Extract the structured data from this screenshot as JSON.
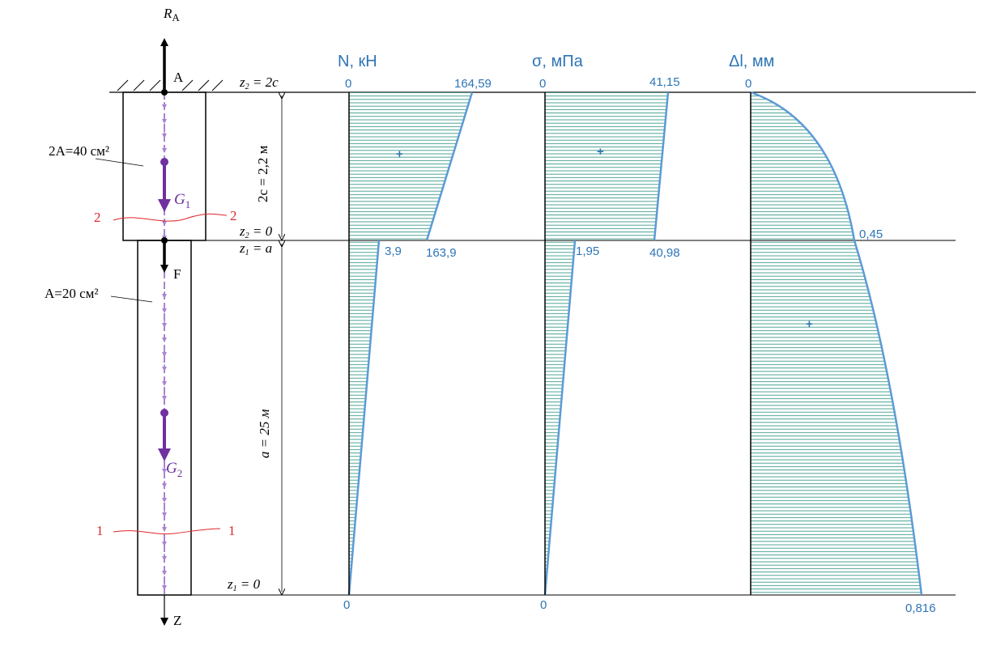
{
  "beam": {
    "reaction": {
      "symbol": "R",
      "index": "A"
    },
    "support_label": "A",
    "upper_area": "2A=40 см²",
    "lower_area": "A=20 см²",
    "weight_upper": {
      "symbol": "G",
      "index": "1"
    },
    "weight_lower": {
      "symbol": "G",
      "index": "2"
    },
    "force": "F",
    "axis": "Z",
    "section_2": [
      "2",
      "2"
    ],
    "section_1": [
      "1",
      "1"
    ]
  },
  "dimensions": {
    "z2_top": {
      "var": "z",
      "index": "2",
      "rest": " = 2c"
    },
    "z2_bottom": {
      "var": "z",
      "index": "2",
      "rest": " = 0"
    },
    "z1_top": {
      "var": "z",
      "index": "1",
      "rest": " = a"
    },
    "z1_bottom": {
      "var": "z",
      "index": "1",
      "rest": " = 0"
    },
    "upper_length": "2c = 2,2 м",
    "lower_length": "a = 25 м"
  },
  "diagrams": [
    {
      "title": "N, кН",
      "top_left": "0",
      "top_right": "164,59",
      "mid_lower": "3,9",
      "mid_upper": "163,9",
      "bottom": "0",
      "sign": "+"
    },
    {
      "title": "σ, мПа",
      "top_left": "0",
      "top_right": "41,15",
      "mid_lower": "1,95",
      "mid_upper": "40,98",
      "bottom": "0",
      "sign": "+"
    },
    {
      "title": "Δl, мм",
      "top_left": "0",
      "mid": "0,45",
      "bottom": "0,816",
      "sign": "+"
    }
  ]
}
